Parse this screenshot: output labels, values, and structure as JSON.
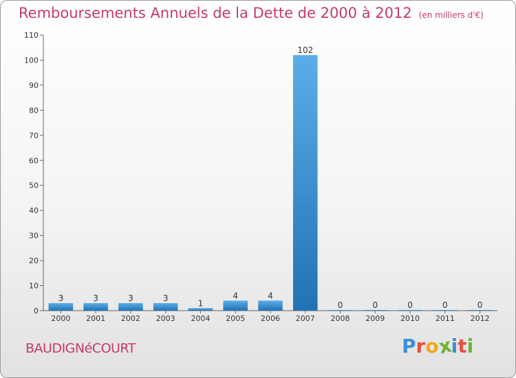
{
  "header": {
    "title": "Remboursements Annuels de la Dette de 2000 à 2012",
    "unit": "(en milliers d'€)"
  },
  "footer": {
    "commune": "BAUDIGNéCOURT"
  },
  "logo": {
    "letters": [
      {
        "ch": "P",
        "color": "#3b8fd8"
      },
      {
        "ch": "r",
        "color": "#e7503e"
      },
      {
        "ch": "o",
        "color": "#f2a81d"
      },
      {
        "ch": "x",
        "color": "#6bb431"
      },
      {
        "ch": "i",
        "color": "#3b8fd8"
      },
      {
        "ch": "t",
        "color": "#e7503e"
      },
      {
        "ch": "i",
        "color": "#6bb431"
      }
    ]
  },
  "colors": {
    "bar_top": "#5aaee8",
    "bar_bottom": "#2272b4",
    "text_accent": "#c43a6a"
  },
  "chart_data": {
    "type": "bar",
    "categories": [
      "2000",
      "2001",
      "2002",
      "2003",
      "2004",
      "2005",
      "2006",
      "2007",
      "2008",
      "2009",
      "2010",
      "2011",
      "2012"
    ],
    "values": [
      3,
      3,
      3,
      3,
      1,
      4,
      4,
      102,
      0,
      0,
      0,
      0,
      0
    ],
    "ylim": [
      0,
      110
    ],
    "yticks": [
      0,
      10,
      20,
      30,
      40,
      50,
      60,
      70,
      80,
      90,
      100,
      110
    ],
    "grid": false
  }
}
